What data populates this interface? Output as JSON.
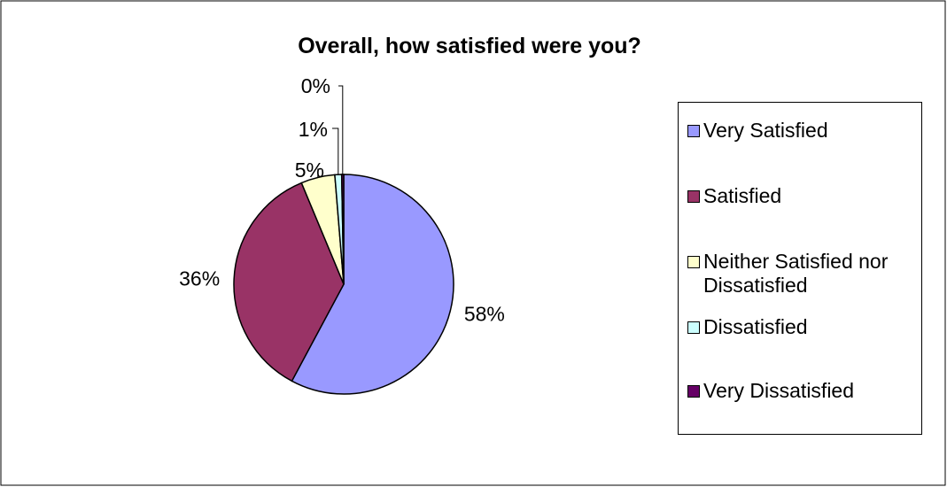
{
  "chart_data": {
    "type": "pie",
    "title": "Overall, how satisfied were you?",
    "slices": [
      {
        "label": "Very Satisfied",
        "value": 58,
        "display": "58%",
        "color": "#9999ff"
      },
      {
        "label": "Satisfied",
        "value": 36,
        "display": "36%",
        "color": "#993366"
      },
      {
        "label": "Neither Satisfied nor Dissatisfied",
        "value": 5,
        "display": "5%",
        "color": "#ffffcc"
      },
      {
        "label": "Dissatisfied",
        "value": 1,
        "display": "1%",
        "color": "#ccffff"
      },
      {
        "label": "Very Dissatisfied",
        "value": 0.3,
        "display": "0%",
        "color": "#660066"
      }
    ],
    "legend_position": "right"
  }
}
